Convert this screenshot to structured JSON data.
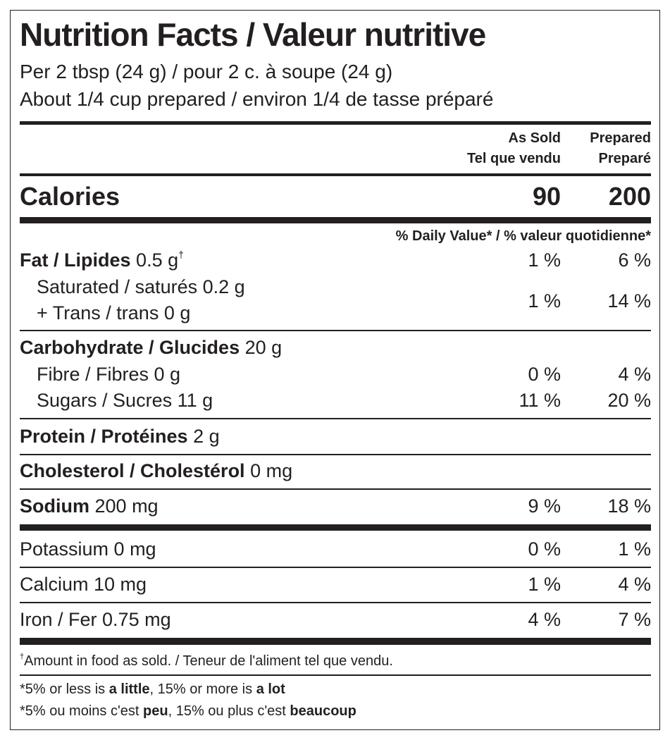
{
  "title": "Nutrition Facts / Valeur nutritive",
  "serving": {
    "line1": "Per 2 tbsp (24 g) / pour 2 c. à soupe (24 g)",
    "line2": "About 1/4 cup prepared / environ 1/4 de tasse préparé"
  },
  "columns": {
    "as_sold_en": "As Sold",
    "as_sold_fr": "Tel que vendu",
    "prepared_en": "Prepared",
    "prepared_fr": "Preparé"
  },
  "calories": {
    "label": "Calories",
    "as_sold": "90",
    "prepared": "200"
  },
  "daily_value_header": "% Daily Value* / % valeur quotidienne*",
  "nutrients": {
    "fat": {
      "label": "Fat / Lipides",
      "amount": "0.5 g",
      "mark": "†",
      "as_sold": "1 %",
      "prepared": "6 %"
    },
    "saturated": {
      "label": "Saturated / saturés 0.2 g",
      "trans": "+ Trans / trans 0 g",
      "as_sold": "1 %",
      "prepared": "14 %"
    },
    "carbohydrate": {
      "label": "Carbohydrate / Glucides",
      "amount": "20 g"
    },
    "fibre": {
      "label": "Fibre / Fibres 0 g",
      "as_sold": "0 %",
      "prepared": "4 %"
    },
    "sugars": {
      "label": "Sugars / Sucres 11 g",
      "as_sold": "11 %",
      "prepared": "20 %"
    },
    "protein": {
      "label": "Protein / Protéines",
      "amount": "2 g"
    },
    "cholesterol": {
      "label": "Cholesterol / Cholestérol",
      "amount": "0 mg"
    },
    "sodium": {
      "label": "Sodium",
      "amount": "200 mg",
      "as_sold": "9 %",
      "prepared": "18 %"
    },
    "potassium": {
      "label": "Potassium 0 mg",
      "as_sold": "0 %",
      "prepared": "1 %"
    },
    "calcium": {
      "label": "Calcium 10 mg",
      "as_sold": "1 %",
      "prepared": "4 %"
    },
    "iron": {
      "label": "Iron / Fer 0.75 mg",
      "as_sold": "4 %",
      "prepared": "7 %"
    }
  },
  "footnotes": {
    "dagger_mark": "†",
    "dagger": "Amount in food as sold. / Teneur de l'aliment tel que vendu.",
    "en": {
      "a": "*5% or less is ",
      "b": "a little",
      "c": ", 15% or more is ",
      "d": "a lot"
    },
    "fr": {
      "a": "*5% ou moins c'est ",
      "b": "peu",
      "c": ", 15% ou plus c'est ",
      "d": "beaucoup"
    }
  }
}
